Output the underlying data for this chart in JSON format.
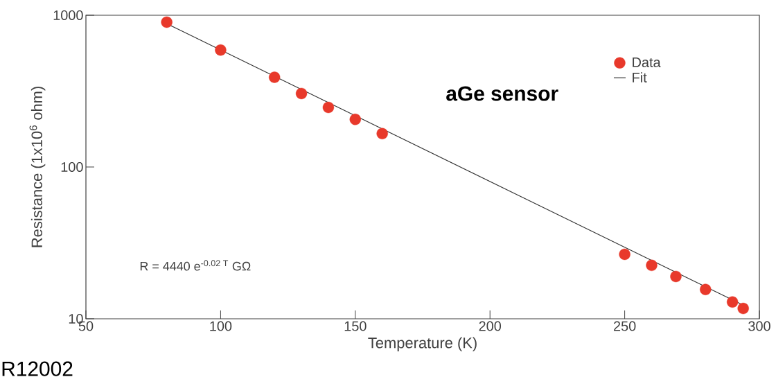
{
  "chart_data": {
    "type": "scatter",
    "xlabel": "Temperature (K)",
    "ylabel": "Resistance (1x10$^{6}$ ohm)",
    "xlim": [
      50,
      300
    ],
    "xticks": [
      50,
      100,
      150,
      200,
      250,
      300
    ],
    "ylim": [
      10,
      1000
    ],
    "yticks": [
      10,
      100,
      1000
    ],
    "log": "y",
    "legend": "top right",
    "series": [
      {
        "name": "Data",
        "marker": "circle",
        "color": "#e8392b",
        "x": [
          80,
          100,
          120,
          130,
          140,
          150,
          160,
          250,
          260,
          269,
          280,
          290,
          294
        ],
        "values": [
          900,
          590,
          390,
          305,
          247,
          206,
          166,
          26.6,
          22.5,
          19.0,
          15.6,
          12.9,
          11.7
        ]
      },
      {
        "name": "Fit",
        "type": "line",
        "marker": "none",
        "line_style": "solid",
        "color": "#333333",
        "x": [
          80,
          294
        ],
        "values": [
          880,
          12.3
        ]
      }
    ],
    "annotations": [
      "aGe sensor",
      "R = 4440 e$^{-0.02 T}$ GΩ",
      "R12002"
    ]
  }
}
